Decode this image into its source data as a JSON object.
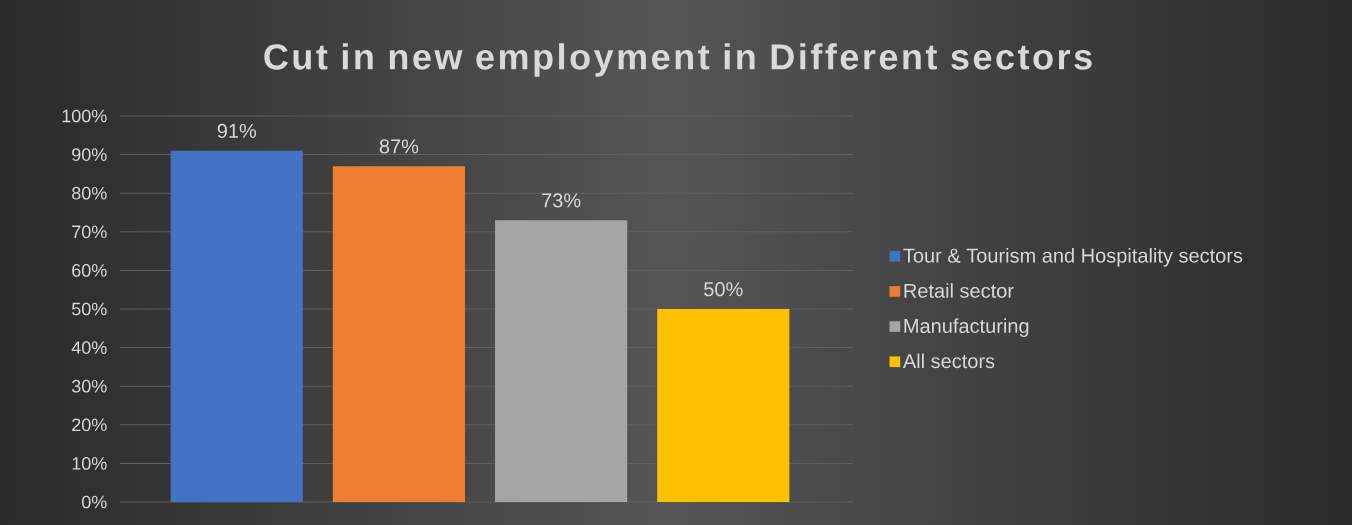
{
  "chart_data": {
    "type": "bar",
    "title": "Cut in new employment in Different sectors",
    "categories": [
      null,
      null,
      null,
      null
    ],
    "series": [
      {
        "name": "Tour & Tourism and Hospitality sectors",
        "color": "#4472c4",
        "values": [
          91,
          null,
          null,
          null
        ],
        "value_labels": [
          "91%",
          null,
          null,
          null
        ]
      },
      {
        "name": "Retail sector",
        "color": "#ed7d31",
        "values": [
          null,
          87,
          null,
          null
        ],
        "value_labels": [
          null,
          "87%",
          null,
          null
        ]
      },
      {
        "name": "Manufacturing",
        "color": "#a5a5a5",
        "values": [
          null,
          null,
          73,
          null
        ],
        "value_labels": [
          null,
          null,
          "73%",
          null
        ]
      },
      {
        "name": "All sectors",
        "color": "#ffc000",
        "values": [
          null,
          null,
          null,
          50
        ],
        "value_labels": [
          null,
          null,
          null,
          "50%"
        ]
      }
    ],
    "ylim": [
      0,
      100
    ],
    "yticks": [
      {
        "value": 0,
        "label": "0%"
      },
      {
        "value": 10,
        "label": "10%"
      },
      {
        "value": 20,
        "label": "20%"
      },
      {
        "value": 30,
        "label": "30%"
      },
      {
        "value": 40,
        "label": "40%"
      },
      {
        "value": 50,
        "label": "50%"
      },
      {
        "value": 60,
        "label": "60%"
      },
      {
        "value": 70,
        "label": "70%"
      },
      {
        "value": 80,
        "label": "80%"
      },
      {
        "value": 90,
        "label": "90%"
      },
      {
        "value": 100,
        "label": "100%"
      }
    ],
    "grid": "y",
    "legend": "right"
  }
}
